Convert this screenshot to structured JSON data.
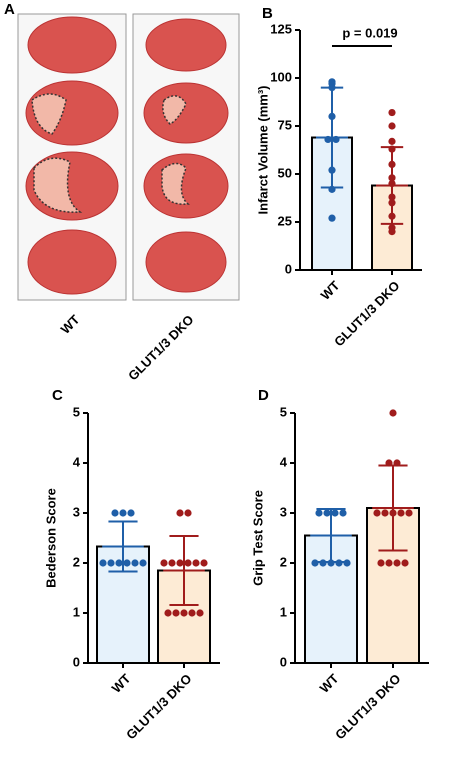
{
  "image_panel": {
    "label": "A",
    "categories": [
      "WT",
      "GLUT1/3 DKO"
    ]
  },
  "chart_data": [
    {
      "type": "bar",
      "label": "B",
      "ylabel": "Infarct Volume (mm³)",
      "categories": [
        "WT",
        "GLUT1/3 DKO"
      ],
      "values": [
        69,
        44
      ],
      "errors": [
        26,
        20
      ],
      "points": [
        [
          98,
          97,
          95,
          80,
          68,
          68,
          52,
          42,
          27
        ],
        [
          82,
          75,
          67,
          63,
          55,
          48,
          45,
          38,
          35,
          28,
          22,
          20
        ]
      ],
      "point_colors": [
        "#1f5fa8",
        "#a01c1c"
      ],
      "fill_colors": [
        "#e6f2fb",
        "#fdebd5"
      ],
      "ylim": [
        0,
        125
      ],
      "yticks": [
        0,
        25,
        50,
        75,
        100,
        125
      ],
      "annotation": "p = 0.019"
    },
    {
      "type": "bar",
      "label": "C",
      "ylabel": "Bederson Score",
      "categories": [
        "WT",
        "GLUT1/3 DKO"
      ],
      "values": [
        2.33,
        1.85
      ],
      "errors": [
        0.5,
        0.69
      ],
      "points": [
        [
          3,
          3,
          3,
          2,
          2,
          2,
          2,
          2,
          2
        ],
        [
          3,
          3,
          2,
          2,
          2,
          2,
          2,
          2,
          1,
          1,
          1,
          1,
          1
        ]
      ],
      "point_colors": [
        "#1f5fa8",
        "#a01c1c"
      ],
      "fill_colors": [
        "#e6f2fb",
        "#fdebd5"
      ],
      "ylim": [
        0,
        5
      ],
      "yticks": [
        0,
        1,
        2,
        3,
        4,
        5
      ]
    },
    {
      "type": "bar",
      "label": "D",
      "ylabel": "Grip Test Score",
      "categories": [
        "WT",
        "GLUT1/3 DKO"
      ],
      "values": [
        2.55,
        3.1
      ],
      "errors": [
        0.53,
        0.85
      ],
      "points": [
        [
          3,
          3,
          3,
          3,
          2,
          2,
          2,
          2,
          2
        ],
        [
          5,
          4,
          4,
          3,
          3,
          3,
          3,
          3,
          2,
          2,
          2,
          2
        ]
      ],
      "point_colors": [
        "#1f5fa8",
        "#a01c1c"
      ],
      "fill_colors": [
        "#e6f2fb",
        "#fdebd5"
      ],
      "ylim": [
        0,
        5
      ],
      "yticks": [
        0,
        1,
        2,
        3,
        4,
        5
      ]
    }
  ]
}
